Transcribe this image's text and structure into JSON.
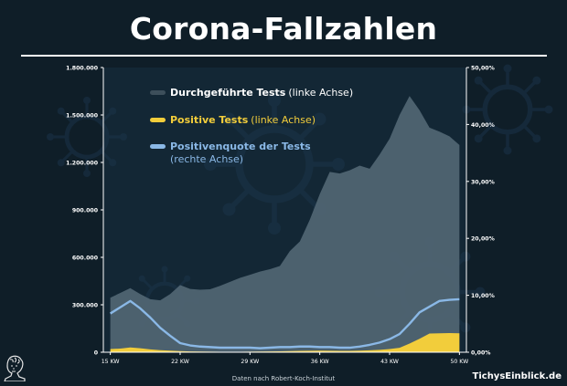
{
  "header": {
    "title": "Corona-Fallzahlen"
  },
  "footer": {
    "source": "Daten nach Robert-Koch-Institut",
    "brand": "TichysEinblick.de"
  },
  "logo": {
    "icon": "bust-logo-icon"
  },
  "colors": {
    "background": "#0f1e28",
    "tests_area": "#4f6472",
    "positive_area": "#f2cd3b",
    "quote_line": "#8ab8e6",
    "legend_tests": "#3d4f5b"
  },
  "chart_data": {
    "type": "area",
    "title": "Corona-Fallzahlen",
    "x": [
      15,
      16,
      17,
      18,
      19,
      20,
      21,
      22,
      23,
      24,
      25,
      26,
      27,
      28,
      29,
      30,
      31,
      32,
      33,
      34,
      35,
      36,
      37,
      38,
      39,
      40,
      41,
      42,
      43,
      44,
      45,
      46,
      47,
      48,
      49,
      50
    ],
    "x_ticks": [
      "15 KW",
      "22 KW",
      "29 KW",
      "36 KW",
      "43 KW",
      "50 KW"
    ],
    "x_tick_values": [
      15,
      22,
      29,
      36,
      43,
      50
    ],
    "y_left_ticks": [
      "0",
      "300.000",
      "600.000",
      "900.000",
      "1.200.000",
      "1.500.000",
      "1.800.000"
    ],
    "y_left_lim": [
      0,
      1800000
    ],
    "y_right_ticks": [
      "0,00%",
      "10,00%",
      "20,00%",
      "30,00%",
      "40,00%",
      "50,00%"
    ],
    "y_right_lim": [
      0,
      50
    ],
    "grid": false,
    "legend_position": "top-left",
    "series": [
      {
        "name": "Durchgeführte Tests",
        "axis_note": "(linke Achse)",
        "axis": "left",
        "style": "area",
        "values": [
          345000,
          375000,
          405000,
          368000,
          335000,
          328000,
          368000,
          425000,
          400000,
          395000,
          398000,
          420000,
          445000,
          470000,
          490000,
          510000,
          525000,
          545000,
          640000,
          700000,
          838000,
          1000000,
          1140000,
          1130000,
          1150000,
          1180000,
          1160000,
          1250000,
          1350000,
          1500000,
          1620000,
          1530000,
          1420000,
          1395000,
          1365000,
          1310000
        ]
      },
      {
        "name": "Positive Tests",
        "axis_note": "(linke Achse)",
        "axis": "left",
        "style": "area",
        "values": [
          20000,
          23000,
          30000,
          25000,
          18000,
          13000,
          10000,
          7000,
          5000,
          4000,
          3500,
          3000,
          3000,
          3000,
          3500,
          4000,
          5000,
          6000,
          7000,
          8500,
          9500,
          10000,
          9500,
          9000,
          9000,
          10000,
          12000,
          15000,
          20000,
          28000,
          55000,
          85000,
          118000,
          120000,
          121000,
          120000
        ]
      },
      {
        "name": "Positivenquote der Tests",
        "axis_note": "(rechte Achse)",
        "axis": "right",
        "style": "line",
        "values": [
          6.8,
          7.9,
          9.0,
          7.7,
          6.1,
          4.3,
          2.9,
          1.6,
          1.2,
          1.0,
          0.9,
          0.8,
          0.8,
          0.8,
          0.8,
          0.7,
          0.8,
          0.9,
          0.9,
          1.0,
          1.0,
          0.9,
          0.9,
          0.8,
          0.8,
          1.0,
          1.3,
          1.7,
          2.3,
          3.2,
          5.0,
          7.0,
          8.0,
          9.0,
          9.2,
          9.3
        ]
      }
    ]
  }
}
